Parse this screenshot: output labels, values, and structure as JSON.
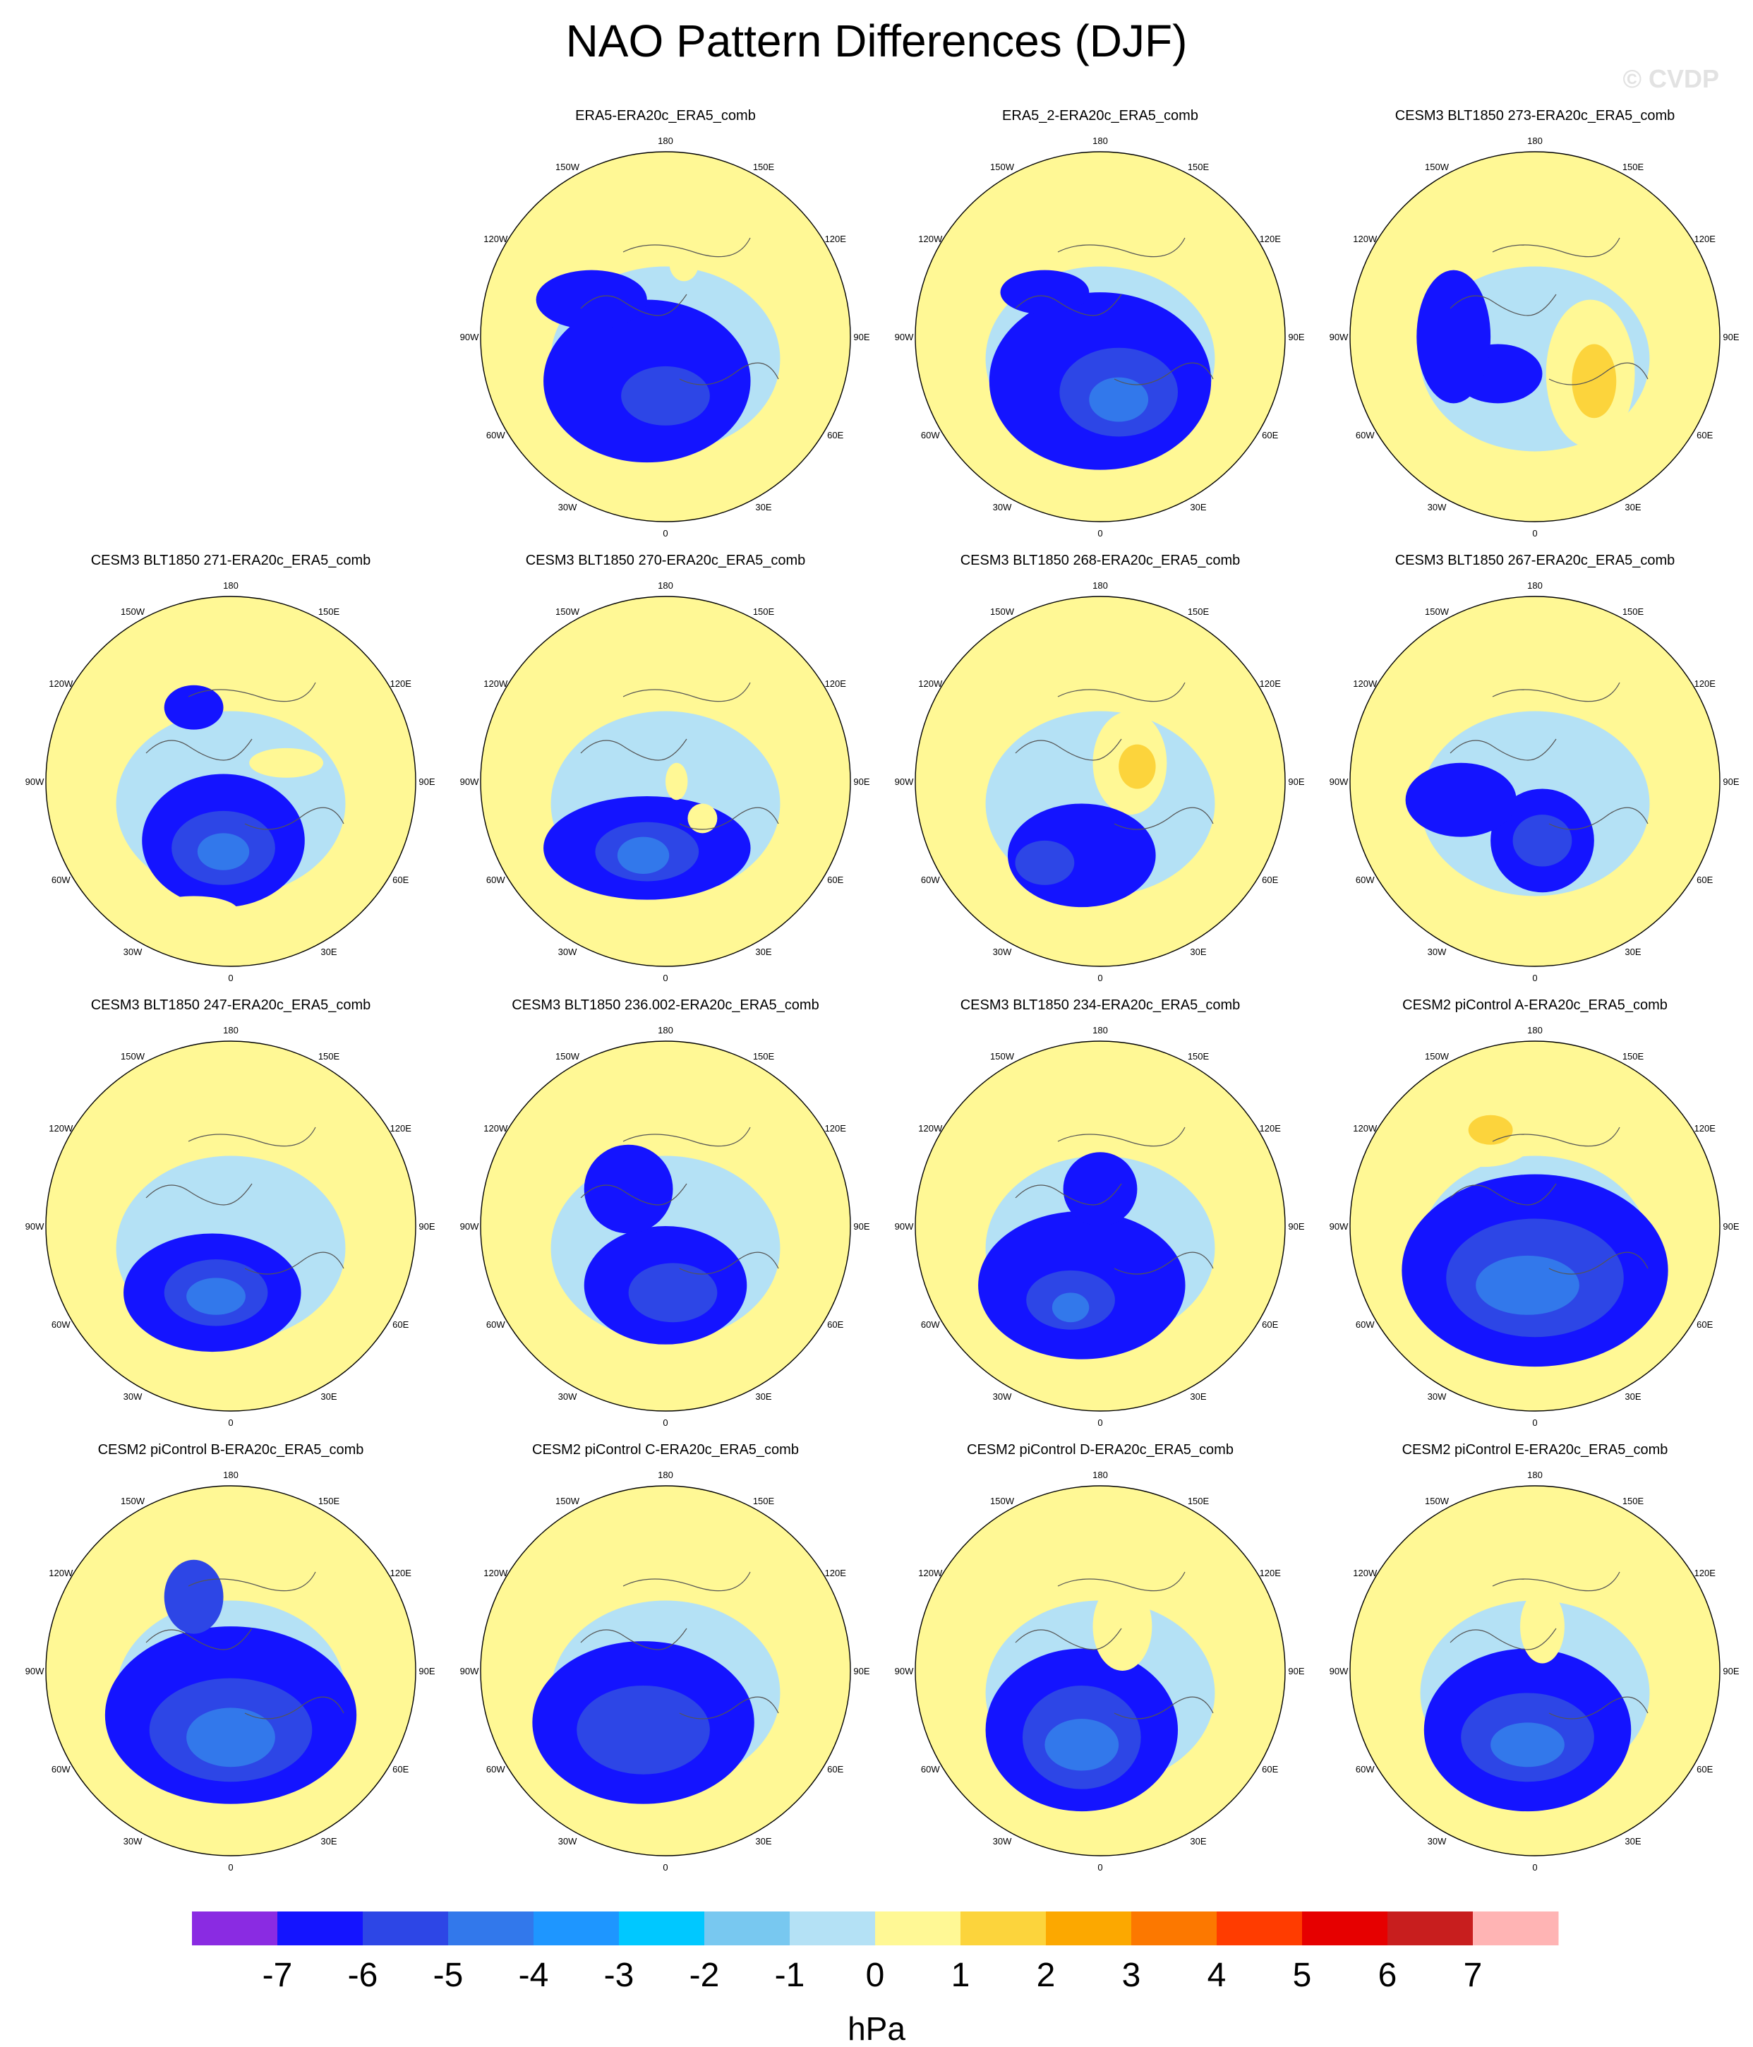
{
  "title": "NAO Pattern Differences (DJF)",
  "watermark": "© CVDP",
  "units": "hPa",
  "longitude_labels": [
    "180",
    "150E",
    "120E",
    "90E",
    "60E",
    "30E",
    "0",
    "30W",
    "60W",
    "90W",
    "120W",
    "150W"
  ],
  "colorbar": {
    "tick_labels": [
      "-7",
      "-6",
      "-5",
      "-4",
      "-3",
      "-2",
      "-1",
      "0",
      "1",
      "2",
      "3",
      "4",
      "5",
      "6",
      "7"
    ],
    "colors": [
      "#8a2be2",
      "#1414ff",
      "#2d46e6",
      "#3278eb",
      "#1e96ff",
      "#00c8ff",
      "#78c8f0",
      "#b4e1f5",
      "#fff895",
      "#fcd43c",
      "#fca800",
      "#fc7800",
      "#ff3c00",
      "#e60000",
      "#c81e1e",
      "#ffb4b4"
    ]
  },
  "panels": [
    {
      "title": "ERA5-ERA20c_ERA5_comb",
      "blobs": [
        [
          0.45,
          0.62,
          0.28,
          0.22,
          1
        ],
        [
          0.5,
          0.66,
          0.12,
          0.08,
          2
        ],
        [
          0.3,
          0.4,
          0.15,
          0.08,
          1
        ],
        [
          0.55,
          0.3,
          0.04,
          0.05,
          8
        ]
      ]
    },
    {
      "title": "ERA5_2-ERA20c_ERA5_comb",
      "blobs": [
        [
          0.5,
          0.62,
          0.3,
          0.24,
          1
        ],
        [
          0.55,
          0.65,
          0.16,
          0.12,
          2
        ],
        [
          0.55,
          0.67,
          0.08,
          0.06,
          3
        ],
        [
          0.35,
          0.38,
          0.12,
          0.06,
          1
        ]
      ]
    },
    {
      "title": "CESM3 BLT1850 273-ERA20c_ERA5_comb",
      "blobs": [
        [
          0.65,
          0.6,
          0.12,
          0.2,
          8
        ],
        [
          0.66,
          0.62,
          0.06,
          0.1,
          9
        ],
        [
          0.35,
          0.18,
          0.06,
          0.05,
          8
        ],
        [
          0.4,
          0.6,
          0.12,
          0.08,
          1
        ],
        [
          0.28,
          0.5,
          0.1,
          0.18,
          1
        ]
      ]
    },
    {
      "title": "CESM3 BLT1850 271-ERA20c_ERA5_comb",
      "blobs": [
        [
          0.48,
          0.66,
          0.22,
          0.18,
          1
        ],
        [
          0.48,
          0.68,
          0.14,
          0.1,
          2
        ],
        [
          0.48,
          0.69,
          0.07,
          0.05,
          3
        ],
        [
          0.4,
          0.85,
          0.12,
          0.04,
          8
        ],
        [
          0.65,
          0.45,
          0.1,
          0.04,
          8
        ],
        [
          0.4,
          0.3,
          0.08,
          0.06,
          1
        ]
      ]
    },
    {
      "title": "CESM3 BLT1850 270-ERA20c_ERA5_comb",
      "blobs": [
        [
          0.45,
          0.68,
          0.28,
          0.14,
          1
        ],
        [
          0.45,
          0.69,
          0.14,
          0.08,
          2
        ],
        [
          0.44,
          0.7,
          0.07,
          0.05,
          3
        ],
        [
          0.6,
          0.6,
          0.04,
          0.04,
          8
        ],
        [
          0.53,
          0.5,
          0.03,
          0.05,
          8
        ]
      ]
    },
    {
      "title": "CESM3 BLT1850 268-ERA20c_ERA5_comb",
      "blobs": [
        [
          0.58,
          0.45,
          0.1,
          0.14,
          8
        ],
        [
          0.6,
          0.46,
          0.05,
          0.06,
          9
        ],
        [
          0.28,
          0.25,
          0.06,
          0.1,
          8
        ],
        [
          0.45,
          0.7,
          0.2,
          0.14,
          1
        ],
        [
          0.35,
          0.72,
          0.08,
          0.06,
          2
        ]
      ]
    },
    {
      "title": "CESM3 BLT1850 267-ERA20c_ERA5_comb",
      "blobs": [
        [
          0.52,
          0.66,
          0.14,
          0.14,
          1
        ],
        [
          0.52,
          0.66,
          0.08,
          0.07,
          2
        ],
        [
          0.35,
          0.25,
          0.12,
          0.08,
          8
        ],
        [
          0.3,
          0.55,
          0.15,
          0.1,
          1
        ]
      ]
    },
    {
      "title": "CESM3 BLT1850 247-ERA20c_ERA5_comb",
      "blobs": [
        [
          0.45,
          0.68,
          0.24,
          0.16,
          1
        ],
        [
          0.46,
          0.68,
          0.14,
          0.09,
          2
        ],
        [
          0.46,
          0.69,
          0.08,
          0.05,
          3
        ],
        [
          0.42,
          0.2,
          0.08,
          0.05,
          8
        ]
      ]
    },
    {
      "title": "CESM3 BLT1850 236.002-ERA20c_ERA5_comb",
      "blobs": [
        [
          0.5,
          0.66,
          0.22,
          0.16,
          1
        ],
        [
          0.52,
          0.68,
          0.12,
          0.08,
          2
        ],
        [
          0.4,
          0.4,
          0.12,
          0.12,
          1
        ]
      ]
    },
    {
      "title": "CESM3 BLT1850 234-ERA20c_ERA5_comb",
      "blobs": [
        [
          0.45,
          0.66,
          0.28,
          0.2,
          1
        ],
        [
          0.42,
          0.7,
          0.12,
          0.08,
          2
        ],
        [
          0.42,
          0.72,
          0.05,
          0.04,
          3
        ],
        [
          0.5,
          0.4,
          0.1,
          0.1,
          1
        ]
      ]
    },
    {
      "title": "CESM2 piControl A-ERA20c_ERA5_comb",
      "blobs": [
        [
          0.5,
          0.62,
          0.36,
          0.26,
          1
        ],
        [
          0.5,
          0.64,
          0.24,
          0.16,
          2
        ],
        [
          0.48,
          0.66,
          0.14,
          0.08,
          3
        ],
        [
          0.36,
          0.26,
          0.14,
          0.08,
          8
        ],
        [
          0.38,
          0.24,
          0.06,
          0.04,
          9
        ]
      ]
    },
    {
      "title": "CESM2 piControl B-ERA20c_ERA5_comb",
      "blobs": [
        [
          0.5,
          0.62,
          0.34,
          0.24,
          1
        ],
        [
          0.5,
          0.66,
          0.22,
          0.14,
          2
        ],
        [
          0.5,
          0.68,
          0.12,
          0.08,
          3
        ],
        [
          0.4,
          0.3,
          0.08,
          0.1,
          2
        ]
      ]
    },
    {
      "title": "CESM2 piControl C-ERA20c_ERA5_comb",
      "blobs": [
        [
          0.44,
          0.64,
          0.3,
          0.22,
          1
        ],
        [
          0.44,
          0.66,
          0.18,
          0.12,
          2
        ],
        [
          0.35,
          0.2,
          0.14,
          0.08,
          8
        ]
      ]
    },
    {
      "title": "CESM2 piControl D-ERA20c_ERA5_comb",
      "blobs": [
        [
          0.45,
          0.66,
          0.26,
          0.22,
          1
        ],
        [
          0.45,
          0.68,
          0.16,
          0.14,
          2
        ],
        [
          0.45,
          0.7,
          0.1,
          0.07,
          3
        ],
        [
          0.56,
          0.38,
          0.08,
          0.12,
          8
        ]
      ]
    },
    {
      "title": "CESM2 piControl E-ERA20c_ERA5_comb",
      "blobs": [
        [
          0.48,
          0.66,
          0.28,
          0.22,
          1
        ],
        [
          0.48,
          0.68,
          0.18,
          0.12,
          2
        ],
        [
          0.48,
          0.7,
          0.1,
          0.06,
          3
        ],
        [
          0.52,
          0.38,
          0.06,
          0.1,
          8
        ]
      ]
    }
  ]
}
